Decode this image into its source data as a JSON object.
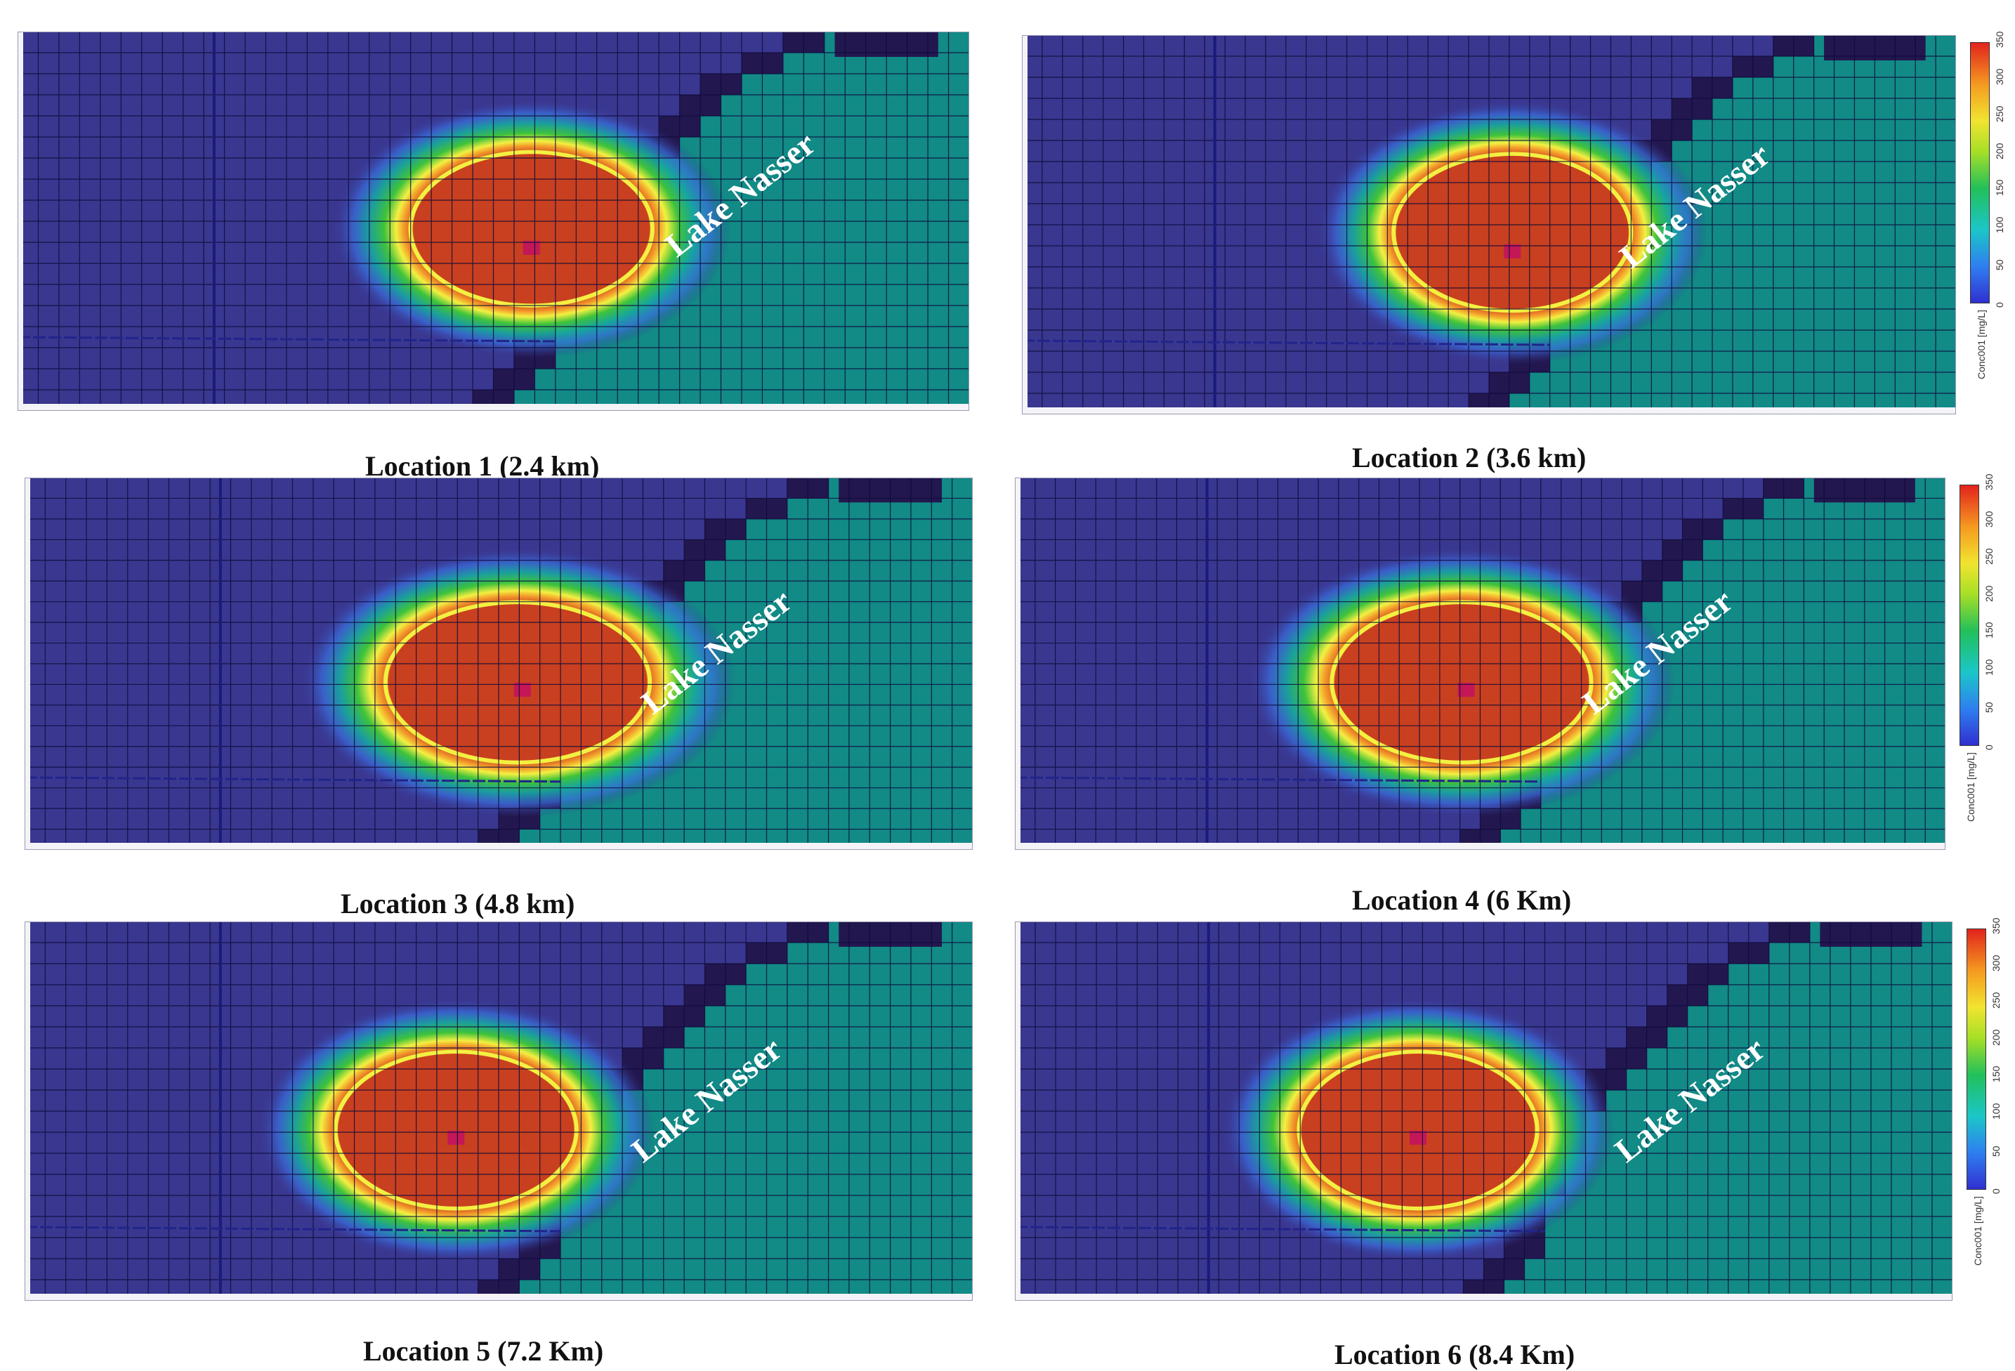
{
  "figure": {
    "panels": [
      {
        "caption": "Location 1 (2.4 km)",
        "lake_label": "Lake Nasser"
      },
      {
        "caption": "Location 2 (3.6 km)",
        "lake_label": "Lake Nasser"
      },
      {
        "caption": "Location 3 (4.8 km)",
        "lake_label": "Lake Nasser"
      },
      {
        "caption": "Location 4 (6 Km)",
        "lake_label": "Lake Nasser"
      },
      {
        "caption": "Location 5 (7.2 Km)",
        "lake_label": "Lake Nasser"
      },
      {
        "caption": "Location 6 (8.4 Km)",
        "lake_label": "Lake Nasser"
      }
    ],
    "legend": {
      "unit": "Conc001 [mg/L]",
      "ticks": [
        "0",
        "50",
        "100",
        "150",
        "200",
        "250",
        "300",
        "350"
      ],
      "range": [
        0,
        350
      ]
    },
    "colors": {
      "aquifer": "#3a3790",
      "boundary": "#23174f",
      "lake": "#128a86",
      "grid": "#0d0b3a",
      "plume_core": "#c8401f",
      "plume_edge": "#f3f041",
      "source": "#c31758"
    }
  }
}
